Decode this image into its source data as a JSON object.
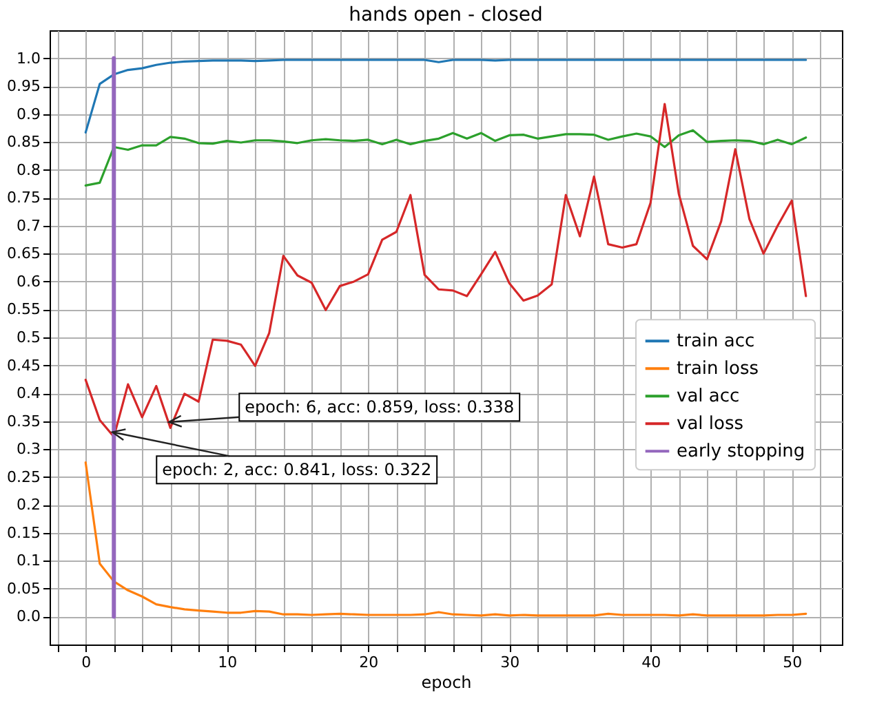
{
  "chart_data": {
    "type": "line",
    "title": "hands open - closed",
    "xlabel": "epoch",
    "x": [
      0,
      1,
      2,
      3,
      4,
      5,
      6,
      7,
      8,
      9,
      10,
      11,
      12,
      13,
      14,
      15,
      16,
      17,
      18,
      19,
      20,
      21,
      22,
      23,
      24,
      25,
      26,
      27,
      28,
      29,
      30,
      31,
      32,
      33,
      34,
      35,
      36,
      37,
      38,
      39,
      40,
      41,
      42,
      43,
      44,
      45,
      46,
      47,
      48,
      49,
      50,
      51
    ],
    "series": [
      {
        "name": "train acc",
        "color": "#1f77b4",
        "values": [
          0.867,
          0.954,
          0.971,
          0.979,
          0.982,
          0.988,
          0.992,
          0.994,
          0.995,
          0.996,
          0.996,
          0.996,
          0.995,
          0.996,
          0.997,
          0.997,
          0.997,
          0.997,
          0.997,
          0.997,
          0.997,
          0.997,
          0.997,
          0.997,
          0.997,
          0.993,
          0.997,
          0.997,
          0.997,
          0.996,
          0.997,
          0.997,
          0.997,
          0.997,
          0.997,
          0.997,
          0.997,
          0.997,
          0.997,
          0.997,
          0.997,
          0.997,
          0.997,
          0.997,
          0.997,
          0.997,
          0.997,
          0.997,
          0.997,
          0.997,
          0.997,
          0.997
        ]
      },
      {
        "name": "train loss",
        "color": "#ff7f0e",
        "values": [
          0.276,
          0.095,
          0.063,
          0.047,
          0.036,
          0.022,
          0.017,
          0.013,
          0.011,
          0.009,
          0.007,
          0.007,
          0.01,
          0.009,
          0.004,
          0.004,
          0.003,
          0.004,
          0.005,
          0.004,
          0.003,
          0.003,
          0.003,
          0.003,
          0.004,
          0.008,
          0.004,
          0.003,
          0.002,
          0.004,
          0.002,
          0.003,
          0.002,
          0.002,
          0.002,
          0.002,
          0.002,
          0.005,
          0.003,
          0.003,
          0.003,
          0.003,
          0.002,
          0.004,
          0.002,
          0.002,
          0.002,
          0.002,
          0.002,
          0.003,
          0.003,
          0.005
        ]
      },
      {
        "name": "val acc",
        "color": "#2ca02c",
        "values": [
          0.772,
          0.777,
          0.841,
          0.836,
          0.844,
          0.844,
          0.859,
          0.856,
          0.848,
          0.847,
          0.852,
          0.849,
          0.853,
          0.853,
          0.851,
          0.848,
          0.853,
          0.855,
          0.853,
          0.852,
          0.854,
          0.846,
          0.854,
          0.846,
          0.852,
          0.856,
          0.866,
          0.856,
          0.866,
          0.852,
          0.862,
          0.863,
          0.856,
          0.86,
          0.864,
          0.864,
          0.863,
          0.854,
          0.86,
          0.865,
          0.86,
          0.841,
          0.862,
          0.871,
          0.85,
          0.852,
          0.853,
          0.852,
          0.846,
          0.854,
          0.846,
          0.858
        ]
      },
      {
        "name": "val loss",
        "color": "#d62728",
        "values": [
          0.424,
          0.352,
          0.322,
          0.416,
          0.357,
          0.413,
          0.338,
          0.399,
          0.385,
          0.496,
          0.494,
          0.487,
          0.449,
          0.508,
          0.646,
          0.611,
          0.598,
          0.549,
          0.592,
          0.6,
          0.613,
          0.675,
          0.689,
          0.755,
          0.612,
          0.586,
          0.584,
          0.574,
          0.613,
          0.653,
          0.597,
          0.566,
          0.575,
          0.595,
          0.755,
          0.681,
          0.788,
          0.667,
          0.661,
          0.667,
          0.741,
          0.918,
          0.757,
          0.664,
          0.64,
          0.708,
          0.837,
          0.712,
          0.65,
          0.7,
          0.745,
          0.574
        ]
      },
      {
        "name": "early stopping",
        "color": "#9467bd",
        "x": [
          2,
          2
        ],
        "values": [
          0,
          1
        ]
      }
    ],
    "xlim": [
      -2.55,
      53.55
    ],
    "xticks": [
      {
        "value": -2,
        "label": null
      },
      0,
      {
        "value": 2,
        "label": null
      },
      {
        "value": 4,
        "label": null
      },
      {
        "value": 6,
        "label": null
      },
      {
        "value": 8,
        "label": null
      },
      10,
      {
        "value": 12,
        "label": null
      },
      {
        "value": 14,
        "label": null
      },
      {
        "value": 16,
        "label": null
      },
      {
        "value": 18,
        "label": null
      },
      20,
      {
        "value": 22,
        "label": null
      },
      {
        "value": 24,
        "label": null
      },
      {
        "value": 26,
        "label": null
      },
      {
        "value": 28,
        "label": null
      },
      30,
      {
        "value": 32,
        "label": null
      },
      {
        "value": 34,
        "label": null
      },
      {
        "value": 36,
        "label": null
      },
      {
        "value": 38,
        "label": null
      },
      40,
      {
        "value": 42,
        "label": null
      },
      {
        "value": 44,
        "label": null
      },
      {
        "value": 46,
        "label": null
      },
      {
        "value": 48,
        "label": null
      },
      50,
      {
        "value": 52,
        "label": null
      }
    ],
    "ylim": [
      -0.05,
      1.05
    ],
    "yticks": [
      {
        "value": 0,
        "label": "0.0"
      },
      0.05,
      0.1,
      0.15,
      0.2,
      0.25,
      0.3,
      0.35,
      0.4,
      0.45,
      0.5,
      0.55,
      0.6,
      0.65,
      0.7,
      0.75,
      0.8,
      0.85,
      0.9,
      0.95,
      {
        "value": 1,
        "label": "1.0"
      }
    ],
    "annotations": [
      {
        "text": "epoch: 6, acc: 0.859, loss: 0.338",
        "x": 6,
        "y": 0.338
      },
      {
        "text": "epoch: 2, acc: 0.841, loss: 0.322",
        "x": 2,
        "y": 0.322
      }
    ],
    "grid": true,
    "legend": "right"
  }
}
